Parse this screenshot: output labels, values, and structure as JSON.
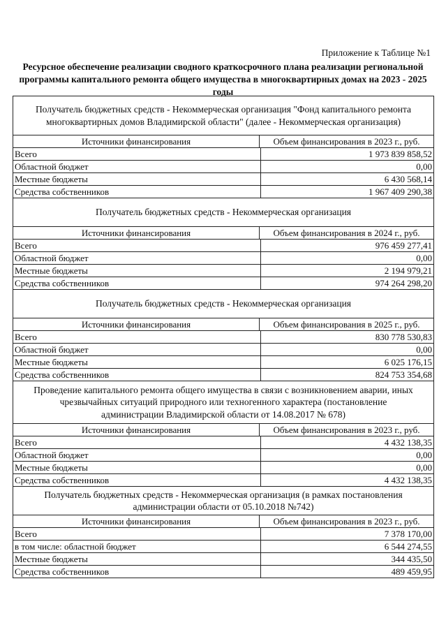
{
  "appendix": "Приложение к Таблице №1",
  "title": "Ресурсное обеспечение реализации сводного краткосрочного плана реализации региональной программы капитального ремонта общего имущества в многоквартирных домах на 2023 - 2025 годы",
  "sections": [
    {
      "title": "Получатель бюджетных средств - Некоммерческая организация \"Фонд капитального ремонта многоквартирных домов Владимирской области\" (далее - Некоммерческая организация)",
      "col1": "Источники финансирования",
      "col2": "Объем финансирования в 2023 г., руб.",
      "rows": [
        {
          "label": "Всего",
          "value": "1 973 839 858,52"
        },
        {
          "label": "Областной бюджет",
          "value": "0,00"
        },
        {
          "label": "Местные бюджеты",
          "value": "6 430 568,14"
        },
        {
          "label": "Средства собственников",
          "value": "1 967 409 290,38"
        }
      ]
    },
    {
      "title": "Получатель бюджетных средств - Некоммерческая организация",
      "col1": "Источники финансирования",
      "col2": "Объем финансирования в 2024 г., руб.",
      "rows": [
        {
          "label": "Всего",
          "value": "976 459 277,41"
        },
        {
          "label": "Областной бюджет",
          "value": "0,00"
        },
        {
          "label": "Местные бюджеты",
          "value": "2 194 979,21"
        },
        {
          "label": "Средства собственников",
          "value": "974 264 298,20"
        }
      ]
    },
    {
      "title": "Получатель бюджетных средств - Некоммерческая организация",
      "col1": "Источники финансирования",
      "col2": "Объем финансирования в 2025 г., руб.",
      "rows": [
        {
          "label": "Всего",
          "value": "830 778 530,83"
        },
        {
          "label": "Областной бюджет",
          "value": "0,00"
        },
        {
          "label": "Местные бюджеты",
          "value": "6 025 176,15"
        },
        {
          "label": "Средства собственников",
          "value": "824 753 354,68"
        }
      ]
    },
    {
      "title": "Проведение капитального ремонта общего имущества в связи с возникновением аварии, иных чрезвычайных ситуаций природного или техногенного характера (постановление администрации Владимирской области от 14.08.2017 № 678)",
      "col1": "Источники финансирования",
      "col2": "Объем финансирования в 2023 г., руб.",
      "rows": [
        {
          "label": "Всего",
          "value": "4 432 138,35"
        },
        {
          "label": "Областной бюджет",
          "value": "0,00"
        },
        {
          "label": "Местные бюджеты",
          "value": "0,00"
        },
        {
          "label": "Средства собственников",
          "value": "4 432 138,35"
        }
      ]
    },
    {
      "title": "Получатель бюджетных средств - Некоммерческая организация (в рамках постановления администрации области от 05.10.2018 №742)",
      "col1": "Источники финансирования",
      "col2": "Объем финансирования в 2023 г., руб.",
      "rows": [
        {
          "label": "Всего",
          "value": "7 378 170,00"
        },
        {
          "label": "в том числе: областной бюджет",
          "value": "6 544 274,55"
        },
        {
          "label": "Местные бюджеты",
          "value": "344 435,50"
        },
        {
          "label": "Средства собственников",
          "value": "489 459,95"
        }
      ]
    }
  ]
}
